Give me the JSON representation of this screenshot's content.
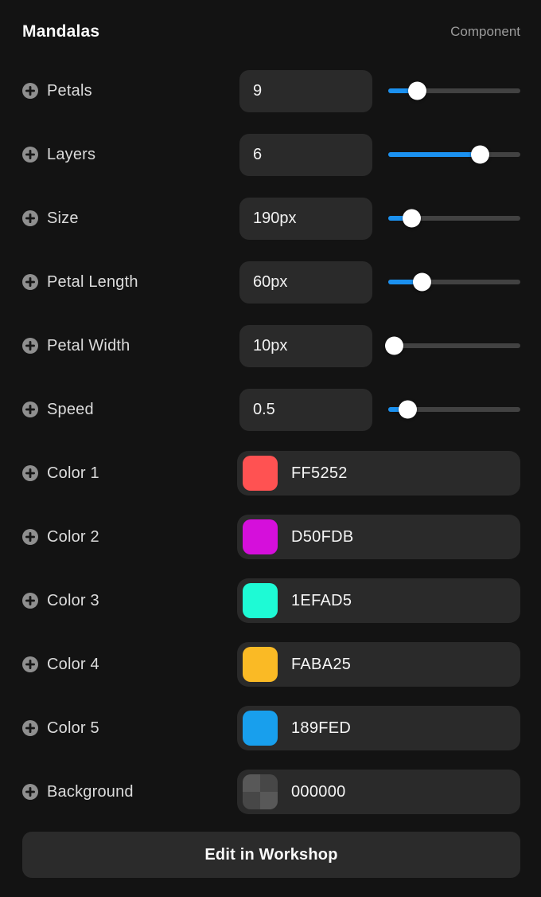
{
  "header": {
    "title": "Mandalas",
    "badge": "Component"
  },
  "accent_color": "#1b91f0",
  "controls": [
    {
      "label": "Petals",
      "value": "9",
      "slider_percent": 22
    },
    {
      "label": "Layers",
      "value": "6",
      "slider_percent": 70
    },
    {
      "label": "Size",
      "value": "190px",
      "slider_percent": 18
    },
    {
      "label": "Petal Length",
      "value": "60px",
      "slider_percent": 26
    },
    {
      "label": "Petal Width",
      "value": "10px",
      "slider_percent": 5
    },
    {
      "label": "Speed",
      "value": "0.5",
      "slider_percent": 15
    }
  ],
  "colors": [
    {
      "label": "Color 1",
      "hex": "FF5252",
      "swatch": "FF5252"
    },
    {
      "label": "Color 2",
      "hex": "D50FDB",
      "swatch": "D50FDB"
    },
    {
      "label": "Color 3",
      "hex": "1EFAD5",
      "swatch": "1EFAD5"
    },
    {
      "label": "Color 4",
      "hex": "FABA25",
      "swatch": "FABA25"
    },
    {
      "label": "Color 5",
      "hex": "189FED",
      "swatch": "189FED"
    },
    {
      "label": "Background",
      "hex": "000000",
      "transparent_checker": true
    }
  ],
  "footer": {
    "button_label": "Edit in Workshop"
  }
}
